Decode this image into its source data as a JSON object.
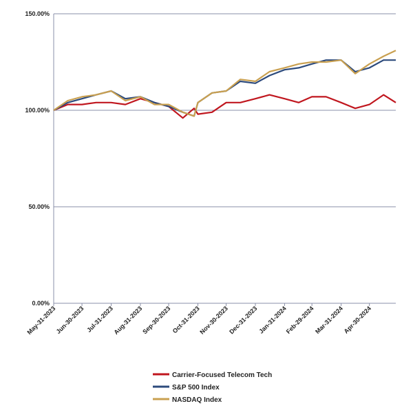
{
  "chart_data": {
    "type": "line",
    "x": [
      "2023-05-31",
      "2023-06-15",
      "2023-06-30",
      "2023-07-15",
      "2023-07-31",
      "2023-08-15",
      "2023-08-31",
      "2023-09-15",
      "2023-09-30",
      "2023-10-15",
      "2023-10-27",
      "2023-10-31",
      "2023-11-15",
      "2023-11-30",
      "2023-12-15",
      "2023-12-31",
      "2024-01-15",
      "2024-01-31",
      "2024-02-15",
      "2024-02-29",
      "2024-03-15",
      "2024-03-31",
      "2024-04-15",
      "2024-04-30",
      "2024-05-15",
      "2024-05-28"
    ],
    "series": [
      {
        "name": "Carrier-Focused Telecom Tech",
        "color": "#c0161e",
        "values": [
          100,
          103,
          103,
          104,
          104,
          103,
          106,
          104,
          102,
          96,
          101,
          98,
          99,
          104,
          104,
          106,
          108,
          106,
          104,
          107,
          107,
          104,
          101,
          103,
          108,
          104
        ]
      },
      {
        "name": "S&P 500 Index",
        "color": "#2c4a7c",
        "values": [
          100,
          104,
          106,
          108,
          110,
          106,
          107,
          104,
          102,
          99,
          97,
          104,
          109,
          110,
          115,
          114,
          118,
          121,
          122,
          124,
          126,
          126,
          120,
          122,
          126,
          126
        ]
      },
      {
        "name": "NASDAQ Index",
        "color": "#c9a050",
        "values": [
          100,
          105,
          107,
          108,
          110,
          105,
          107,
          103,
          103,
          99,
          97,
          104,
          109,
          110,
          116,
          115,
          120,
          122,
          124,
          125,
          125,
          126,
          119,
          124,
          128,
          131
        ]
      }
    ],
    "xlim": [
      "2023-05-31",
      "2024-05-28"
    ],
    "xticks": [
      {
        "value": "2023-05-31",
        "label": "May-31-2023"
      },
      {
        "value": "2023-06-30",
        "label": "Jun-30-2023"
      },
      {
        "value": "2023-07-31",
        "label": "Jul-31-2023"
      },
      {
        "value": "2023-08-31",
        "label": "Aug-31-2023"
      },
      {
        "value": "2023-09-30",
        "label": "Sep-30-2023"
      },
      {
        "value": "2023-10-31",
        "label": "Oct-31-2023"
      },
      {
        "value": "2023-11-30",
        "label": "Nov-30-2023"
      },
      {
        "value": "2023-12-31",
        "label": "Dec-31-2023"
      },
      {
        "value": "2024-01-31",
        "label": "Jan-31-2024"
      },
      {
        "value": "2024-02-29",
        "label": "Feb-29-2024"
      },
      {
        "value": "2024-03-31",
        "label": "Mar-31-2024"
      },
      {
        "value": "2024-04-30",
        "label": "Apr-30-2024"
      }
    ],
    "ylim": [
      0,
      150
    ],
    "yticks": [
      {
        "value": 0,
        "label": "0.00%"
      },
      {
        "value": 50,
        "label": "50.00%"
      },
      {
        "value": 100,
        "label": "100.00%"
      },
      {
        "value": 150,
        "label": "150.00%"
      }
    ],
    "grid": true
  }
}
